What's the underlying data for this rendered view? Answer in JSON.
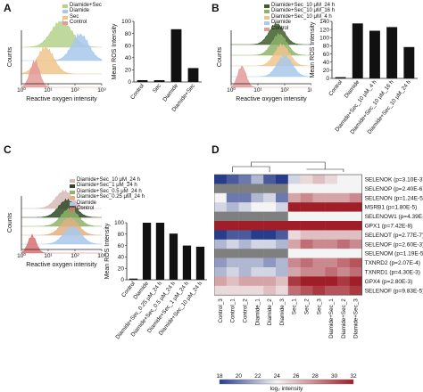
{
  "panels": {
    "A": {
      "letter": "A"
    },
    "B": {
      "letter": "B"
    },
    "C": {
      "letter": "C"
    },
    "D": {
      "letter": "D"
    }
  },
  "chart_data": [
    {
      "id": "A-hist",
      "type": "area",
      "xlabel": "Reactive oxygen intensity",
      "ylabel": "Counts",
      "xscale": "log",
      "xticks": [
        "10⁰",
        "10¹",
        "10²",
        "10³"
      ],
      "legend": [
        {
          "name": "Diamide+Sec",
          "color": "#b4d28c"
        },
        {
          "name": "Diamide",
          "color": "#a8c8ec"
        },
        {
          "name": "Sec",
          "color": "#f0c48c"
        },
        {
          "name": "Control",
          "color": "#e49a9a"
        }
      ],
      "series": [
        {
          "name": "Diamide+Sec",
          "peak_log": 1.5,
          "width": 0.55
        },
        {
          "name": "Diamide",
          "peak_log": 2.2,
          "width": 0.45
        },
        {
          "name": "Sec",
          "peak_log": 0.9,
          "width": 0.45
        },
        {
          "name": "Control",
          "peak_log": 0.5,
          "width": 0.25
        }
      ]
    },
    {
      "id": "A-bar",
      "type": "bar",
      "ylabel": "Mean ROS Intensity",
      "ylim": [
        0,
        100
      ],
      "yticks": [
        0,
        20,
        40,
        60,
        80,
        100
      ],
      "categories": [
        "Control",
        "Sec",
        "Diamide",
        "Diamide+Sec"
      ],
      "values": [
        3,
        3,
        87,
        23
      ]
    },
    {
      "id": "B-hist",
      "type": "area",
      "xlabel": "Reactive oxygen intensity",
      "ylabel": "Counts",
      "xscale": "log",
      "xticks": [
        "10⁰",
        "10¹",
        "10²",
        "10³"
      ],
      "legend": [
        {
          "name": "Diamide+Sec_10 μM_24 h",
          "color": "#3d5e2a"
        },
        {
          "name": "Diamide+Sec_10 μM_16 h",
          "color": "#8fb36a"
        },
        {
          "name": "Diamide+Sec_10 μM_4 h",
          "color": "#f0c48c"
        },
        {
          "name": "Diamide",
          "color": "#a8c8ec"
        },
        {
          "name": "Control",
          "color": "#e49a9a"
        }
      ],
      "series": [
        {
          "name": "Diamide+Sec_10 μM_24 h",
          "peak_log": 1.7,
          "width": 0.4
        },
        {
          "name": "Diamide+Sec_10 μM_16 h",
          "peak_log": 1.8,
          "width": 0.4
        },
        {
          "name": "Diamide+Sec_10 μM_4 h",
          "peak_log": 1.9,
          "width": 0.4
        },
        {
          "name": "Diamide",
          "peak_log": 2.0,
          "width": 0.4
        },
        {
          "name": "Control",
          "peak_log": 0.4,
          "width": 0.22
        }
      ]
    },
    {
      "id": "B-bar",
      "type": "bar",
      "ylabel": "Mean ROS Intensity",
      "ylim": [
        0,
        140
      ],
      "yticks": [
        0,
        20,
        40,
        60,
        80,
        100,
        120,
        140
      ],
      "categories": [
        "Control",
        "Diamide",
        "Diamide+Sec_10 μM_4 h",
        "Diamide+Sec_10 μM_16 h",
        "Diamide+Sec_10 μM_24 h"
      ],
      "values": [
        3,
        135,
        117,
        126,
        77
      ]
    },
    {
      "id": "C-hist",
      "type": "area",
      "xlabel": "Reactive oxygen intensity",
      "ylabel": "Counts",
      "xscale": "log",
      "xticks": [
        "10⁰",
        "10¹",
        "10²",
        "10³"
      ],
      "legend": [
        {
          "name": "Diamide+Sec_10 μM_24 h",
          "color": "#d8b8b8"
        },
        {
          "name": "Diamide+Sec_1 μM_24 h",
          "color": "#2e4a26"
        },
        {
          "name": "Diamide+Sec_0.5 μM_24 h",
          "color": "#8fb36a"
        },
        {
          "name": "Diamide+Sec_0.25 μM_24 h",
          "color": "#e0b080"
        },
        {
          "name": "Diamide",
          "color": "#a8c8ec"
        },
        {
          "name": "Control",
          "color": "#d97070"
        }
      ],
      "series": [
        {
          "name": "Diamide+Sec_10 μM_24 h",
          "peak_log": 1.6,
          "width": 0.45
        },
        {
          "name": "Diamide+Sec_1 μM_24 h",
          "peak_log": 1.7,
          "width": 0.45
        },
        {
          "name": "Diamide+Sec_0.5 μM_24 h",
          "peak_log": 1.8,
          "width": 0.45
        },
        {
          "name": "Diamide+Sec_0.25 μM_24 h",
          "peak_log": 1.8,
          "width": 0.45
        },
        {
          "name": "Diamide",
          "peak_log": 1.9,
          "width": 0.45
        },
        {
          "name": "Control",
          "peak_log": 0.4,
          "width": 0.22
        }
      ]
    },
    {
      "id": "C-bar",
      "type": "bar",
      "ylabel": "Mean ROS Intensity",
      "ylim": [
        0,
        100
      ],
      "yticks": [
        0,
        20,
        40,
        60,
        80,
        100
      ],
      "categories": [
        "Control",
        "Diamide",
        "Diamide+Sec_0.25 μM_24 h",
        "Diamide+Sec_0.5 μM_24 h",
        "Diamide+Sec_1 μM_24 h",
        "Diamide+Sec_10 μM_24 h"
      ],
      "values": [
        2,
        100,
        100,
        81,
        60,
        58
      ]
    },
    {
      "id": "D-heatmap",
      "type": "heatmap",
      "columns": [
        "Control_3",
        "Control_1",
        "Control_2",
        "Diamide_1",
        "Diamide_2",
        "Diamide_3",
        "Sec_1",
        "Sec_2",
        "Sec_3",
        "Diamide+Sec_1",
        "Diamide+Sec_2",
        "Diamide+Sec_3"
      ],
      "rows": [
        "SELENOK (p=3.10E-3)",
        "SELENOP (p=2.40E-6)",
        "SELENON (p=1.24E-5)",
        "MSRB1 (p=1.80E-5)",
        "SELENOW1 (p=4.39E-8)",
        "GPX1 (p=7.42E-8)",
        "SELENOT (p=2.77E-7)",
        "SELENOF (p=2.60E-3)",
        "SELENOM (p=1.19E-5)",
        "TXNRD2 (p=2.07E-4)",
        "TXNRD1 (p=4.30E-3)",
        "GPX4 (p=2.80E-3)",
        "SELENOF (p=9.83E-5)"
      ],
      "values": [
        [
          17,
          19,
          20,
          22,
          19,
          16,
          23,
          25,
          26,
          25,
          24,
          24
        ],
        [
          24,
          24,
          24,
          24,
          24,
          24,
          24,
          24,
          24,
          24,
          24,
          24
        ],
        [
          24,
          20,
          20,
          22,
          23,
          20,
          27,
          28,
          27,
          27,
          27,
          28
        ],
        [
          23,
          22,
          23,
          24,
          24,
          23,
          32,
          32,
          32,
          32,
          32,
          32
        ],
        [
          24,
          24,
          24,
          24,
          24,
          24,
          24,
          24,
          24,
          24,
          24,
          24
        ],
        [
          32,
          32,
          32,
          32,
          32,
          32,
          32,
          32,
          32,
          32,
          32,
          32
        ],
        [
          16,
          19,
          19,
          18,
          18,
          19,
          25,
          26,
          26,
          26,
          26,
          26
        ],
        [
          22,
          23,
          22,
          23,
          23,
          22,
          27,
          29,
          28,
          28,
          29,
          28
        ],
        [
          24,
          24,
          24,
          24,
          24,
          24,
          24,
          24,
          24,
          24,
          24,
          24
        ],
        [
          21,
          22,
          22,
          22,
          21,
          22,
          28,
          29,
          28,
          28,
          29,
          30
        ],
        [
          22,
          23,
          22,
          23,
          23,
          22,
          27,
          28,
          28,
          29,
          28,
          29
        ],
        [
          27,
          26,
          27,
          27,
          27,
          26,
          31,
          32,
          32,
          32,
          31,
          32
        ],
        [
          25,
          25,
          25,
          25,
          26,
          25,
          29,
          30,
          31,
          30,
          30,
          31
        ]
      ],
      "colorbar": {
        "ticks": [
          18,
          20,
          22,
          24,
          26,
          28,
          30,
          32
        ],
        "label": "log₂ intensity",
        "low_color": "#283c8c",
        "mid_color": "#f4f4f4",
        "high_color": "#a01e28",
        "missing_color": "#7f7f7f"
      }
    }
  ]
}
